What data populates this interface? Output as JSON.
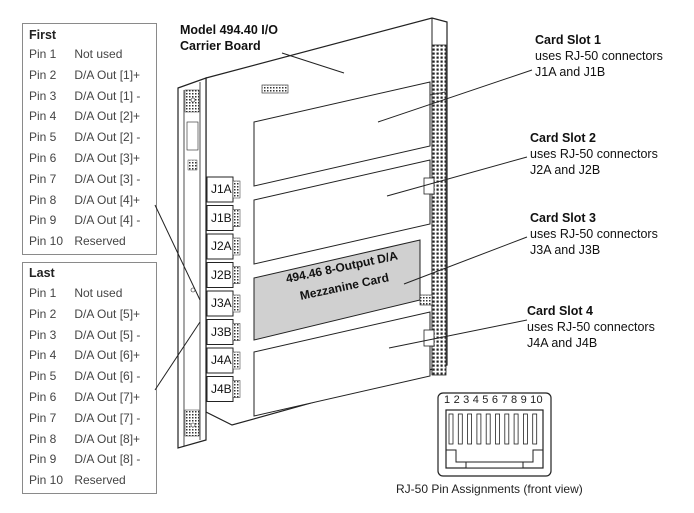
{
  "first_table": {
    "title": "First",
    "rows": [
      {
        "pin": "Pin 1",
        "desc": "Not used"
      },
      {
        "pin": "Pin 2",
        "desc": "D/A Out [1]+"
      },
      {
        "pin": "Pin 3",
        "desc": "D/A Out [1] -"
      },
      {
        "pin": "Pin 4",
        "desc": "D/A Out [2]+"
      },
      {
        "pin": "Pin 5",
        "desc": "D/A Out [2] -"
      },
      {
        "pin": "Pin 6",
        "desc": "D/A Out [3]+"
      },
      {
        "pin": "Pin 7",
        "desc": "D/A Out [3] -"
      },
      {
        "pin": "Pin 8",
        "desc": "D/A Out [4]+"
      },
      {
        "pin": "Pin 9",
        "desc": "D/A Out [4] -"
      },
      {
        "pin": "Pin 10",
        "desc": "Reserved"
      }
    ]
  },
  "last_table": {
    "title": "Last",
    "rows": [
      {
        "pin": "Pin 1",
        "desc": "Not used"
      },
      {
        "pin": "Pin 2",
        "desc": "D/A Out [5]+"
      },
      {
        "pin": "Pin 3",
        "desc": "D/A Out [5] -"
      },
      {
        "pin": "Pin 4",
        "desc": "D/A Out [6]+"
      },
      {
        "pin": "Pin 5",
        "desc": "D/A Out [6] -"
      },
      {
        "pin": "Pin 6",
        "desc": "D/A Out [7]+"
      },
      {
        "pin": "Pin 7",
        "desc": "D/A Out [7] -"
      },
      {
        "pin": "Pin 8",
        "desc": "D/A Out [8]+"
      },
      {
        "pin": "Pin 9",
        "desc": "D/A Out [8] -"
      },
      {
        "pin": "Pin 10",
        "desc": "Reserved"
      }
    ]
  },
  "board_title": [
    "Model 494.40 I/O",
    "Carrier Board"
  ],
  "connector_labels": [
    "J1A",
    "J1B",
    "J2A",
    "J2B",
    "J3A",
    "J3B",
    "J4A",
    "J4B"
  ],
  "mezzanine_label": [
    "494.46 8-Output D/A",
    "Mezzanine Card"
  ],
  "slots": [
    {
      "title": "Card Slot 1",
      "line1": "uses RJ-50 connectors",
      "line2": "J1A and J1B"
    },
    {
      "title": "Card Slot 2",
      "line1": "uses RJ-50 connectors",
      "line2": "J2A and J2B"
    },
    {
      "title": "Card Slot 3",
      "line1": "uses RJ-50 connectors",
      "line2": "J3A and J3B"
    },
    {
      "title": "Card Slot 4",
      "line1": "uses RJ-50 connectors",
      "line2": "J4A and J4B"
    }
  ],
  "rj50": {
    "pin_numbers": "1 2 3 4 5 6 7 8 9 10",
    "caption": "RJ-50 Pin Assignments (front view)"
  }
}
